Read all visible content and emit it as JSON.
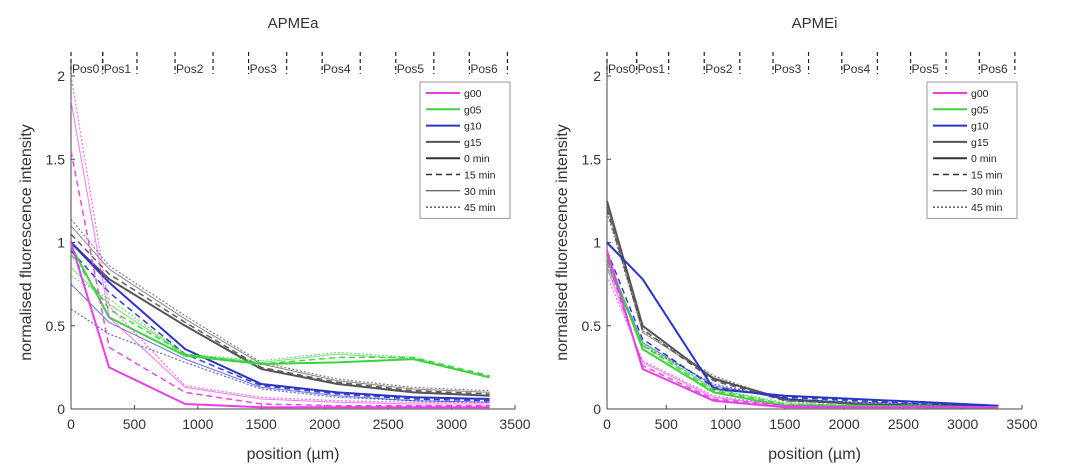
{
  "colors": {
    "g00": "#e83ee8",
    "g05": "#3fd23f",
    "g10": "#2a35c8",
    "g15": "#555555",
    "time": "#333333"
  },
  "chart_data": [
    {
      "type": "line",
      "title": "APMEa",
      "xlabel": "position (µm)",
      "ylabel": "normalised fluorescence intensity",
      "xlim": [
        0,
        3500
      ],
      "ylim": [
        0,
        2
      ],
      "xticks": [
        "0",
        "500",
        "1000",
        "1500",
        "2000",
        "2500",
        "3000",
        "3500"
      ],
      "yticks": [
        "0",
        "0.5",
        "1",
        "1.5",
        "2"
      ],
      "positions": [
        "Pos0",
        "Pos1",
        "Pos2",
        "Pos3",
        "Pos4",
        "Pos5",
        "Pos6"
      ],
      "position_bounds": [
        [
          0,
          250
        ],
        [
          250,
          520
        ],
        [
          820,
          1120
        ],
        [
          1400,
          1700
        ],
        [
          1980,
          2280
        ],
        [
          2560,
          2860
        ],
        [
          3140,
          3440
        ]
      ],
      "x": [
        0,
        300,
        900,
        1500,
        2100,
        2700,
        3300
      ],
      "legend": [
        "g00",
        "g05",
        "g10",
        "g15",
        "0 min",
        "15 min",
        "30 min",
        "45 min"
      ],
      "legend_position": "top-right",
      "series": [
        {
          "group": "g00",
          "time": "0 min",
          "values": [
            1.0,
            0.25,
            0.03,
            0.01,
            0.01,
            0.01,
            0.01
          ]
        },
        {
          "group": "g00",
          "time": "15 min",
          "values": [
            1.55,
            0.37,
            0.1,
            0.03,
            0.02,
            0.02,
            0.02
          ]
        },
        {
          "group": "g00",
          "time": "30 min",
          "values": [
            1.85,
            0.55,
            0.13,
            0.06,
            0.04,
            0.03,
            0.03
          ]
        },
        {
          "group": "g00",
          "time": "45 min",
          "values": [
            2.0,
            0.62,
            0.14,
            0.07,
            0.05,
            0.04,
            0.04
          ]
        },
        {
          "group": "g05",
          "time": "0 min",
          "values": [
            0.98,
            0.55,
            0.32,
            0.27,
            0.28,
            0.3,
            0.19
          ]
        },
        {
          "group": "g05",
          "time": "15 min",
          "values": [
            0.93,
            0.6,
            0.33,
            0.27,
            0.31,
            0.31,
            0.2
          ]
        },
        {
          "group": "g05",
          "time": "30 min",
          "values": [
            0.85,
            0.63,
            0.33,
            0.28,
            0.33,
            0.3,
            0.19
          ]
        },
        {
          "group": "g05",
          "time": "45 min",
          "values": [
            0.8,
            0.66,
            0.33,
            0.29,
            0.34,
            0.31,
            0.19
          ]
        },
        {
          "group": "g10",
          "time": "0 min",
          "values": [
            1.0,
            0.76,
            0.36,
            0.15,
            0.1,
            0.07,
            0.06
          ]
        },
        {
          "group": "g10",
          "time": "15 min",
          "values": [
            0.95,
            0.7,
            0.33,
            0.14,
            0.09,
            0.06,
            0.05
          ]
        },
        {
          "group": "g10",
          "time": "30 min",
          "values": [
            0.75,
            0.52,
            0.3,
            0.13,
            0.08,
            0.05,
            0.04
          ]
        },
        {
          "group": "g10",
          "time": "45 min",
          "values": [
            0.6,
            0.45,
            0.28,
            0.12,
            0.07,
            0.05,
            0.04
          ]
        },
        {
          "group": "g15",
          "time": "0 min",
          "values": [
            1.0,
            0.78,
            0.5,
            0.24,
            0.15,
            0.1,
            0.08
          ]
        },
        {
          "group": "g15",
          "time": "15 min",
          "values": [
            1.05,
            0.81,
            0.52,
            0.25,
            0.16,
            0.11,
            0.09
          ]
        },
        {
          "group": "g15",
          "time": "30 min",
          "values": [
            1.1,
            0.84,
            0.54,
            0.27,
            0.17,
            0.12,
            0.1
          ]
        },
        {
          "group": "g15",
          "time": "45 min",
          "values": [
            1.14,
            0.86,
            0.56,
            0.28,
            0.18,
            0.13,
            0.11
          ]
        }
      ]
    },
    {
      "type": "line",
      "title": "APMEi",
      "xlabel": "position (µm)",
      "ylabel": "normalised fluorescence intensity",
      "xlim": [
        0,
        3500
      ],
      "ylim": [
        0,
        2
      ],
      "xticks": [
        "0",
        "500",
        "1000",
        "1500",
        "2000",
        "2500",
        "3000",
        "3500"
      ],
      "yticks": [
        "0",
        "0.5",
        "1",
        "1.5",
        "2"
      ],
      "positions": [
        "Pos0",
        "Pos1",
        "Pos2",
        "Pos3",
        "Pos4",
        "Pos5",
        "Pos6"
      ],
      "position_bounds": [
        [
          0,
          250
        ],
        [
          250,
          520
        ],
        [
          820,
          1120
        ],
        [
          1400,
          1700
        ],
        [
          1980,
          2280
        ],
        [
          2560,
          2860
        ],
        [
          3140,
          3440
        ]
      ],
      "x": [
        0,
        300,
        900,
        1500,
        2100,
        2700,
        3300
      ],
      "legend": [
        "g00",
        "g05",
        "g10",
        "g15",
        "0 min",
        "15 min",
        "30 min",
        "45 min"
      ],
      "legend_position": "top-right",
      "series": [
        {
          "group": "g00",
          "time": "0 min",
          "values": [
            0.95,
            0.24,
            0.05,
            0.01,
            0.01,
            0.01,
            0.01
          ]
        },
        {
          "group": "g00",
          "time": "15 min",
          "values": [
            0.9,
            0.26,
            0.06,
            0.02,
            0.01,
            0.01,
            0.01
          ]
        },
        {
          "group": "g00",
          "time": "30 min",
          "values": [
            0.85,
            0.28,
            0.07,
            0.02,
            0.01,
            0.01,
            0.01
          ]
        },
        {
          "group": "g00",
          "time": "45 min",
          "values": [
            0.8,
            0.29,
            0.08,
            0.02,
            0.01,
            0.01,
            0.01
          ]
        },
        {
          "group": "g05",
          "time": "0 min",
          "values": [
            0.92,
            0.36,
            0.1,
            0.02,
            0.02,
            0.01,
            0.01
          ]
        },
        {
          "group": "g05",
          "time": "15 min",
          "values": [
            0.88,
            0.38,
            0.11,
            0.03,
            0.02,
            0.01,
            0.01
          ]
        },
        {
          "group": "g05",
          "time": "30 min",
          "values": [
            0.86,
            0.39,
            0.12,
            0.03,
            0.02,
            0.02,
            0.01
          ]
        },
        {
          "group": "g05",
          "time": "45 min",
          "values": [
            0.84,
            0.4,
            0.12,
            0.04,
            0.02,
            0.02,
            0.01
          ]
        },
        {
          "group": "g10",
          "time": "0 min",
          "values": [
            1.0,
            0.78,
            0.12,
            0.08,
            0.06,
            0.04,
            0.02
          ]
        },
        {
          "group": "g10",
          "time": "15 min",
          "values": [
            0.95,
            0.42,
            0.13,
            0.07,
            0.05,
            0.03,
            0.02
          ]
        },
        {
          "group": "g10",
          "time": "30 min",
          "values": [
            0.9,
            0.4,
            0.14,
            0.06,
            0.04,
            0.03,
            0.02
          ]
        },
        {
          "group": "g10",
          "time": "45 min",
          "values": [
            0.88,
            0.38,
            0.15,
            0.06,
            0.04,
            0.03,
            0.02
          ]
        },
        {
          "group": "g15",
          "time": "0 min",
          "values": [
            1.25,
            0.5,
            0.18,
            0.06,
            0.03,
            0.02,
            0.02
          ]
        },
        {
          "group": "g15",
          "time": "15 min",
          "values": [
            1.2,
            0.48,
            0.17,
            0.05,
            0.03,
            0.02,
            0.02
          ]
        },
        {
          "group": "g15",
          "time": "30 min",
          "values": [
            1.22,
            0.46,
            0.19,
            0.05,
            0.03,
            0.02,
            0.02
          ]
        },
        {
          "group": "g15",
          "time": "45 min",
          "values": [
            1.18,
            0.47,
            0.2,
            0.05,
            0.03,
            0.02,
            0.02
          ]
        }
      ]
    }
  ]
}
